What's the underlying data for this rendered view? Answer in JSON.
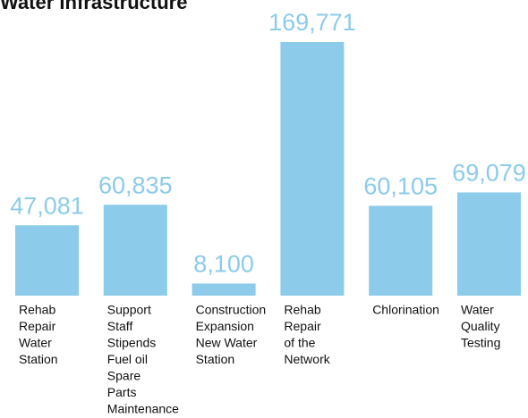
{
  "chart_data": {
    "type": "bar",
    "title": "Water Infrastructure",
    "categories": [
      [
        "Rehab",
        "Repair",
        "Water",
        "Station"
      ],
      [
        "Support",
        "Staff",
        "Stipends",
        "Fuel oil",
        "Spare",
        "Parts",
        "Maintenance"
      ],
      [
        "Construction",
        "Expansion",
        "New Water",
        "Station"
      ],
      [
        "Rehab",
        "Repair",
        "of the",
        "Network"
      ],
      [
        "Chlorination"
      ],
      [
        "Water",
        "Quality",
        "Testing"
      ]
    ],
    "values": [
      47081,
      60835,
      8100,
      169771,
      60105,
      69079
    ],
    "value_labels": [
      "47,081",
      "60,835",
      "8,100",
      "169,771",
      "60,105",
      "69,079"
    ],
    "color": "#8ccbea"
  }
}
